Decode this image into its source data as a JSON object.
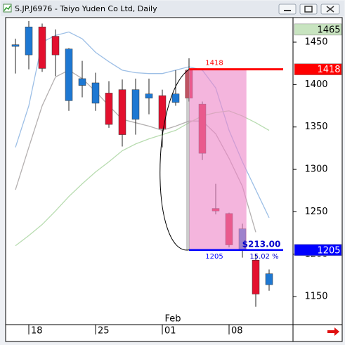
{
  "window_title": "S.JP.J6976 - Taiyo Yuden Co Ltd, Daily",
  "chart_data": {
    "type": "candlestick",
    "categories": [
      null,
      "18",
      null,
      null,
      null,
      null,
      "25",
      null,
      null,
      null,
      null,
      "01",
      null,
      null,
      null,
      null,
      "08",
      null,
      null,
      null
    ],
    "x_annotation": "Feb",
    "open": [
      1445,
      1435,
      1468,
      1457,
      1381,
      1399,
      1378,
      1390,
      1394,
      1359,
      1384,
      1387,
      1379,
      1417,
      1377,
      1254,
      1248,
      1205,
      1193,
      1164
    ],
    "high": [
      1454,
      1475,
      1472,
      1465,
      1443,
      1428,
      1414,
      1404,
      1406,
      1407,
      1407,
      1394,
      1417,
      1431,
      1380,
      1283,
      1249,
      1236,
      1200,
      1182
    ],
    "low": [
      1413,
      1418,
      1415,
      1410,
      1369,
      1385,
      1369,
      1349,
      1327,
      1341,
      1365,
      1326,
      1375,
      1380,
      1311,
      1247,
      1208,
      1196,
      1138,
      1157
    ],
    "close": [
      1447,
      1468,
      1419,
      1435,
      1442,
      1407,
      1402,
      1353,
      1341,
      1394,
      1389,
      1348,
      1389,
      1384,
      1319,
      1251,
      1211,
      1230,
      1153,
      1177
    ],
    "up_color": "#1e78d2",
    "down_color": "#e3102e",
    "moving_averages": [
      {
        "color": "#9dbfe6",
        "values": [
          1326,
          1375,
          1450,
          1458,
          1462,
          1454,
          1438,
          1427,
          1417,
          1414,
          1413,
          1413,
          1417,
          1421,
          1417,
          1396,
          1346,
          1309,
          1276,
          1243
        ]
      },
      {
        "color": "#b4b0b0",
        "values": [
          1276,
          1326,
          1375,
          1409,
          1417,
          1407,
          1392,
          1375,
          1359,
          1355,
          1351,
          1346,
          1351,
          1357,
          1357,
          1342,
          1313,
          1280,
          1226,
          null
        ]
      },
      {
        "color": "#b8dcb0",
        "values": [
          1210,
          1222,
          1235,
          1251,
          1268,
          1283,
          1297,
          1309,
          1322,
          1330,
          1336,
          1341,
          1346,
          1355,
          1363,
          1367,
          1369,
          1363,
          1355,
          1346
        ]
      }
    ],
    "ylim": [
      1117,
      1479
    ],
    "yticks": [
      1150,
      1200,
      1250,
      1300,
      1350,
      1400,
      1450
    ],
    "zone": {
      "from": 13,
      "to": 17.3,
      "color": "#ee88c8"
    },
    "levels": [
      {
        "value": 1418,
        "color": "#ff0000"
      },
      {
        "value": 1205,
        "color": "#0000ff"
      }
    ],
    "measure": {
      "value": 213,
      "label": "$213.00",
      "percent": 15.02,
      "percent_label": "15.02 %"
    },
    "price_tags": [
      {
        "value": 1465,
        "color": "#c8e4c0",
        "text_color": "#000000"
      },
      {
        "value": 1418,
        "color": "#ff0000",
        "text_color": "#ffffff"
      },
      {
        "value": 1205,
        "color": "#0000ff",
        "text_color": "#ffffff"
      }
    ]
  }
}
